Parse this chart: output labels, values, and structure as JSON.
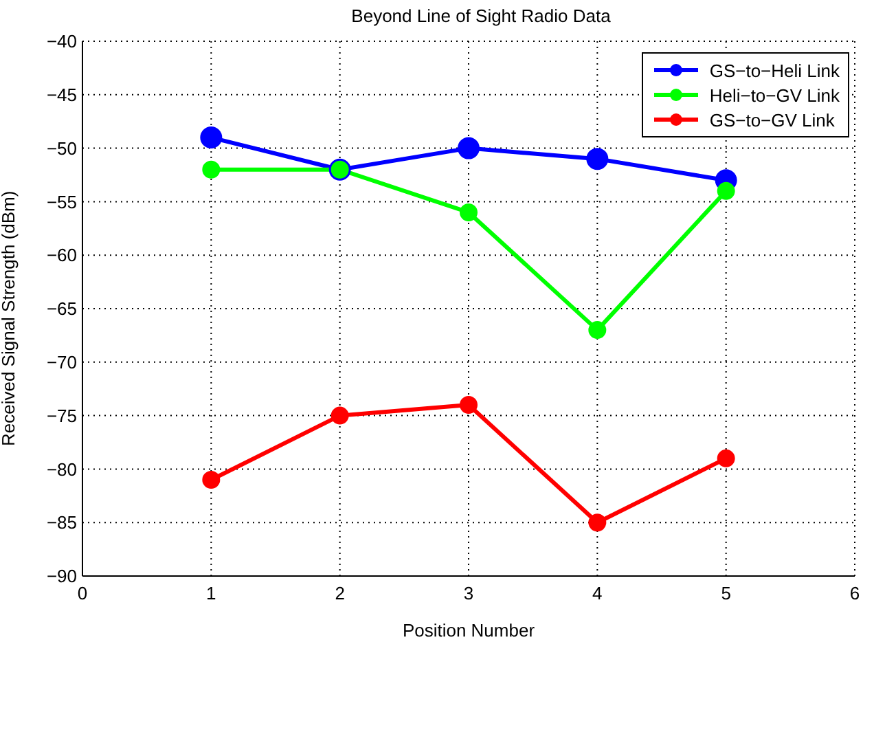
{
  "chart_data": {
    "type": "line",
    "title": "Beyond Line of Sight Radio Data",
    "xlabel": "Position Number",
    "ylabel": "Received Signal Strength (dBm)",
    "x": [
      1,
      2,
      3,
      4,
      5
    ],
    "series": [
      {
        "name": "GS−to−Heli Link",
        "color": "#0000ff",
        "values": [
          -49,
          -52,
          -50,
          -51,
          -53
        ]
      },
      {
        "name": "Heli−to−GV Link",
        "color": "#00ff00",
        "values": [
          -52,
          -52,
          -56,
          -67,
          -54
        ]
      },
      {
        "name": "GS−to−GV Link",
        "color": "#ff0000",
        "values": [
          -81,
          -75,
          -74,
          -85,
          -79
        ]
      }
    ],
    "xlim": [
      0,
      6
    ],
    "xticks": [
      0,
      1,
      2,
      3,
      4,
      5,
      6
    ],
    "ylim": [
      -90,
      -40
    ],
    "yticks": [
      {
        "value": -90,
        "label": "−90"
      },
      {
        "value": -85,
        "label": "−85"
      },
      {
        "value": -80,
        "label": "−80"
      },
      {
        "value": -75,
        "label": "−75"
      },
      {
        "value": -70,
        "label": "−70"
      },
      {
        "value": -65,
        "label": "−65"
      },
      {
        "value": -60,
        "label": "−60"
      },
      {
        "value": -55,
        "label": "−55"
      },
      {
        "value": -50,
        "label": "−50"
      },
      {
        "value": -45,
        "label": "−45"
      },
      {
        "value": -40,
        "label": "−40"
      }
    ],
    "grid": true,
    "legend": "top right",
    "marker": "circle",
    "line_style": "solid"
  }
}
